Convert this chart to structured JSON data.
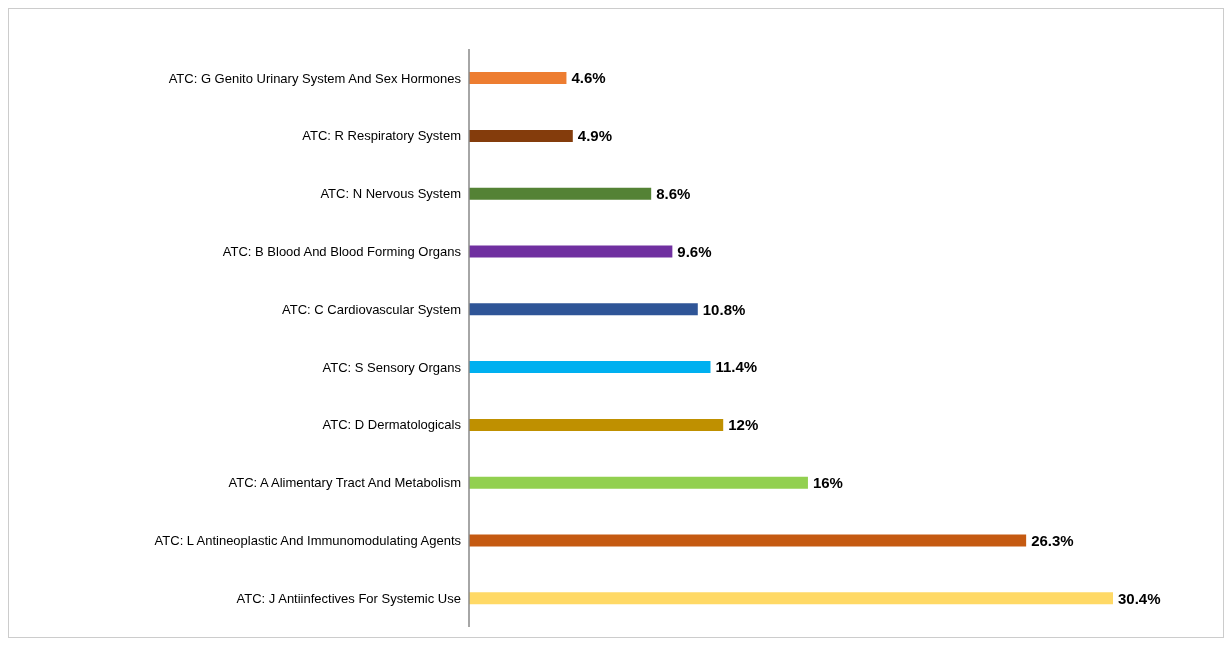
{
  "chart_data": {
    "type": "bar",
    "orientation": "horizontal",
    "categories": [
      "ATC: G Genito Urinary System And Sex Hormones",
      "ATC: R Respiratory System",
      "ATC: N Nervous System",
      "ATC: B Blood And Blood Forming Organs",
      "ATC: C Cardiovascular System",
      "ATC: S Sensory Organs",
      "ATC: D Dermatologicals",
      "ATC: A Alimentary Tract And Metabolism",
      "ATC: L Antineoplastic And Immunomodulating Agents",
      "ATC: J Antiinfectives For Systemic Use"
    ],
    "values": [
      4.6,
      4.9,
      8.6,
      9.6,
      10.8,
      11.4,
      12,
      16,
      26.3,
      30.4
    ],
    "value_labels": [
      "4.6%",
      "4.9%",
      "8.6%",
      "9.6%",
      "10.8%",
      "11.4%",
      "12%",
      "16%",
      "26.3%",
      "30.4%"
    ],
    "colors": [
      "#ed7d31",
      "#843c0c",
      "#548235",
      "#7030a0",
      "#2f5597",
      "#00b0f0",
      "#bf9000",
      "#92d050",
      "#c55a11",
      "#ffd966"
    ],
    "grid": false,
    "legend": false
  }
}
